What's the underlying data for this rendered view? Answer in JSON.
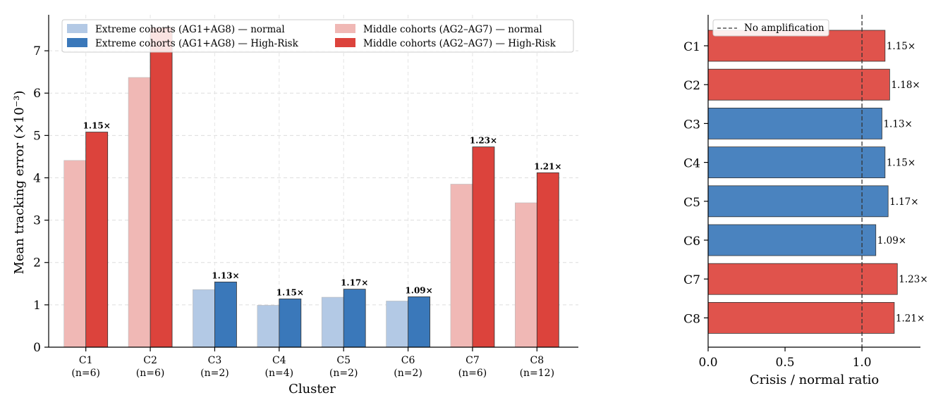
{
  "chart_data": [
    {
      "type": "bar",
      "ylabel": "Mean tracking error (×10⁻³)",
      "xlabel": "Cluster",
      "ylim": [
        0,
        7.85
      ],
      "yticks": [
        0,
        1,
        2,
        3,
        4,
        5,
        6,
        7
      ],
      "grid": true,
      "legend_position": "top",
      "categories": [
        "C1",
        "C2",
        "C3",
        "C4",
        "C5",
        "C6",
        "C7",
        "C8"
      ],
      "category_sub": [
        "(n=6)",
        "(n=6)",
        "(n=2)",
        "(n=4)",
        "(n=2)",
        "(n=2)",
        "(n=6)",
        "(n=12)"
      ],
      "group": [
        "middle",
        "middle",
        "extreme",
        "extreme",
        "extreme",
        "extreme",
        "middle",
        "middle"
      ],
      "series": [
        {
          "name": "normal",
          "values": [
            4.41,
            6.37,
            1.36,
            0.99,
            1.18,
            1.09,
            3.85,
            3.41
          ]
        },
        {
          "name": "High-Risk",
          "values": [
            5.08,
            7.55,
            1.54,
            1.14,
            1.37,
            1.19,
            4.73,
            4.12
          ]
        }
      ],
      "ratio_labels": [
        "1.15×",
        "",
        "1.13×",
        "1.15×",
        "1.17×",
        "1.09×",
        "1.23×",
        "1.21×"
      ],
      "legend": [
        {
          "label": "Extreme cohorts (AG1+AG8) — normal",
          "color": "#b3c9e5"
        },
        {
          "label": "Extreme cohorts (AG1+AG8) — High-Risk",
          "color": "#3a78ba"
        },
        {
          "label": "Middle cohorts (AG2–AG7) — normal",
          "color": "#f0b8b5"
        },
        {
          "label": "Middle cohorts (AG2–AG7) — High-Risk",
          "color": "#dc433c"
        }
      ],
      "colors": {
        "extreme_normal": "#b3c9e5",
        "extreme_high": "#3a78ba",
        "middle_normal": "#f0b8b5",
        "middle_high": "#dc433c"
      }
    },
    {
      "type": "bar",
      "orientation": "horizontal",
      "xlabel": "Crisis / normal ratio",
      "xlim": [
        0,
        1.38
      ],
      "xticks": [
        "0.0",
        "0.5",
        "1.0"
      ],
      "xtick_values": [
        0,
        0.5,
        1.0
      ],
      "categories": [
        "C1",
        "C2",
        "C3",
        "C4",
        "C5",
        "C6",
        "C7",
        "C8"
      ],
      "values": [
        1.15,
        1.18,
        1.13,
        1.15,
        1.17,
        1.09,
        1.23,
        1.21
      ],
      "value_labels": [
        "1.15×",
        "1.18×",
        "1.13×",
        "1.15×",
        "1.17×",
        "1.09×",
        "1.23×",
        "1.21×"
      ],
      "group": [
        "middle",
        "middle",
        "extreme",
        "extreme",
        "extreme",
        "extreme",
        "middle",
        "middle"
      ],
      "reference_line": {
        "x": 1.0,
        "label": "No amplification",
        "style": "dashed"
      },
      "legend_position": "top-left",
      "colors": {
        "extreme": "#4a83bf",
        "middle": "#e0534c"
      }
    }
  ]
}
